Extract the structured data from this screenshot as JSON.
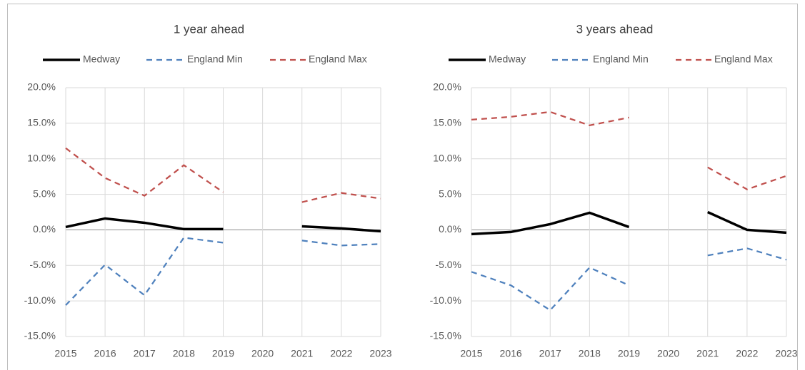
{
  "chart_data": [
    {
      "type": "line",
      "title": "1 year ahead",
      "categories": [
        "2015",
        "2016",
        "2017",
        "2018",
        "2019",
        "2020",
        "2021",
        "2022",
        "2023"
      ],
      "series": [
        {
          "name": "Medway",
          "color": "#000000",
          "style": "solid",
          "values": [
            0.4,
            1.6,
            1.0,
            0.1,
            0.1,
            null,
            0.5,
            0.2,
            -0.2
          ]
        },
        {
          "name": "England Min",
          "color": "#4f81bd",
          "style": "dashed",
          "values": [
            -10.6,
            -4.9,
            -9.2,
            -1.1,
            -1.8,
            null,
            -1.5,
            -2.2,
            -2.0
          ]
        },
        {
          "name": "England Max",
          "color": "#c0504d",
          "style": "dashed",
          "values": [
            11.5,
            7.3,
            4.8,
            9.1,
            5.3,
            null,
            3.9,
            5.2,
            4.4
          ]
        }
      ],
      "ylim": [
        -15,
        20
      ],
      "yticks": [
        {
          "value": -15,
          "label": "-15.0%"
        },
        {
          "value": -10,
          "label": "-10.0%"
        },
        {
          "value": -5,
          "label": "-5.0%"
        },
        {
          "value": 0,
          "label": "0.0%"
        },
        {
          "value": 5,
          "label": "5.0%"
        },
        {
          "value": 10,
          "label": "10.0%"
        },
        {
          "value": 15,
          "label": "15.0%"
        },
        {
          "value": 20,
          "label": "20.0%"
        }
      ],
      "grid": true,
      "legend": "top"
    },
    {
      "type": "line",
      "title": "3 years ahead",
      "categories": [
        "2015",
        "2016",
        "2017",
        "2018",
        "2019",
        "2020",
        "2021",
        "2022",
        "2023"
      ],
      "series": [
        {
          "name": "Medway",
          "color": "#000000",
          "style": "solid",
          "values": [
            -0.6,
            -0.3,
            0.8,
            2.4,
            0.4,
            null,
            2.5,
            0.0,
            -0.4
          ]
        },
        {
          "name": "England Min",
          "color": "#4f81bd",
          "style": "dashed",
          "values": [
            -5.9,
            -7.8,
            -11.3,
            -5.3,
            -7.8,
            null,
            -3.6,
            -2.6,
            -4.2
          ]
        },
        {
          "name": "England Max",
          "color": "#c0504d",
          "style": "dashed",
          "values": [
            15.5,
            15.9,
            16.6,
            14.7,
            15.8,
            null,
            8.8,
            5.7,
            7.6
          ]
        }
      ],
      "ylim": [
        -15,
        20
      ],
      "yticks": [
        {
          "value": -15,
          "label": "-15.0%"
        },
        {
          "value": -10,
          "label": "-10.0%"
        },
        {
          "value": -5,
          "label": "-5.0%"
        },
        {
          "value": 0,
          "label": "0.0%"
        },
        {
          "value": 5,
          "label": "5.0%"
        },
        {
          "value": 10,
          "label": "10.0%"
        },
        {
          "value": 15,
          "label": "15.0%"
        },
        {
          "value": 20,
          "label": "20.0%"
        }
      ],
      "grid": true,
      "legend": "top"
    }
  ]
}
